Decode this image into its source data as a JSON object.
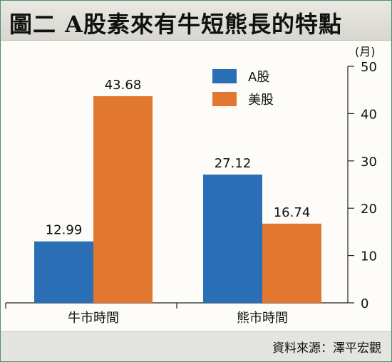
{
  "header": {
    "title": "圖二 A股素來有牛短熊長的特點"
  },
  "footer": {
    "source": "資料來源：澤平宏觀"
  },
  "colors": {
    "series_a": "#2a6fb5",
    "series_b": "#e2782f"
  },
  "chart_data": {
    "type": "bar",
    "categories": [
      "牛市時間",
      "熊市時間"
    ],
    "series": [
      {
        "name": "A股",
        "values": [
          12.99,
          27.12
        ],
        "labels": [
          "12.99",
          "27.12"
        ]
      },
      {
        "name": "美股",
        "values": [
          43.68,
          16.74
        ],
        "labels": [
          "43.68",
          "16.74"
        ]
      }
    ],
    "yunit": "(月)",
    "ylim": [
      0,
      50
    ],
    "yticks": [
      0,
      10,
      20,
      30,
      40,
      50
    ],
    "ytick_labels": [
      "0",
      "10",
      "20",
      "30",
      "40",
      "50"
    ],
    "yaxis_position": "right",
    "legend_position": "top-center",
    "grid": false
  }
}
